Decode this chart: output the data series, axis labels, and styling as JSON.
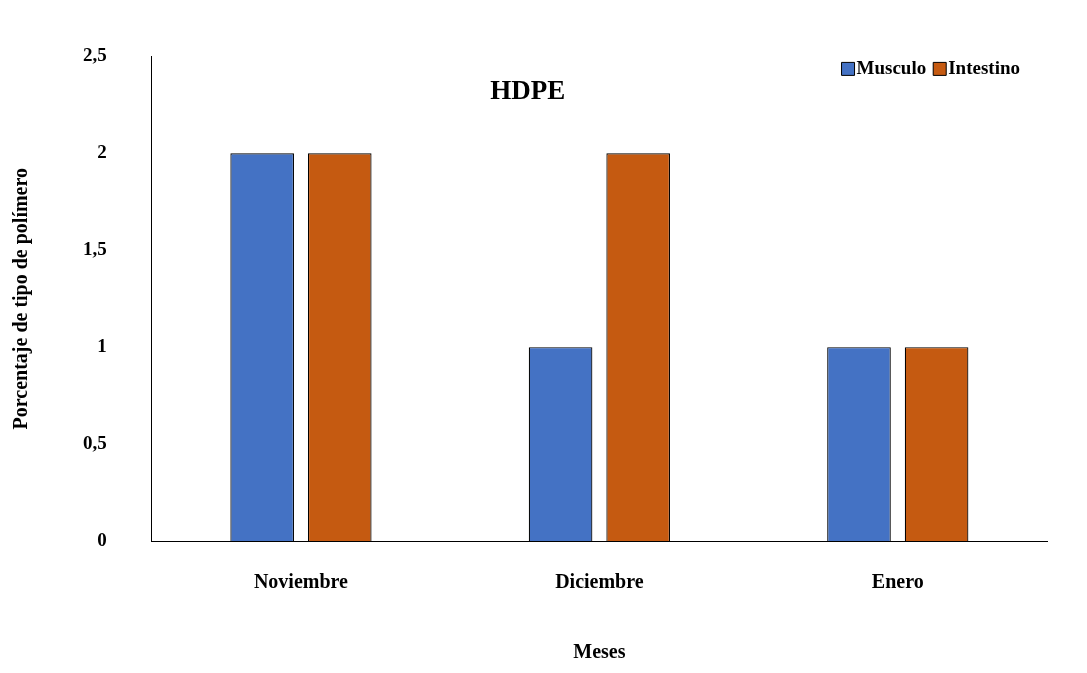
{
  "chart_data": {
    "type": "bar",
    "title": "HDPE",
    "xlabel": "Meses",
    "ylabel": "Porcentaje de tipo de polímero",
    "categories": [
      "Noviembre",
      "Diciembre",
      "Enero"
    ],
    "series": [
      {
        "name": "Musculo",
        "color": "#4472c4",
        "values": [
          2,
          1,
          1
        ]
      },
      {
        "name": "Intestino",
        "color": "#c55a11",
        "values": [
          2,
          2,
          1
        ]
      }
    ],
    "ylim": [
      0,
      2.5
    ],
    "yticks": [
      0,
      {
        "value": 0.5,
        "label": "0,5"
      },
      1,
      {
        "value": 1.5,
        "label": "1,5"
      },
      2,
      {
        "value": 2.5,
        "label": "2,5"
      }
    ],
    "grid": false,
    "legend": "top right"
  }
}
